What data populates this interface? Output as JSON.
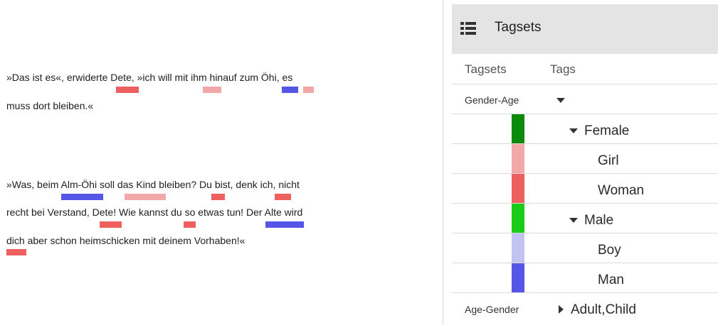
{
  "document": {
    "lines": [
      "»Das ist es«, erwiderte Dete, »ich will mit ihm hinauf zum Öhi, es",
      "muss dort bleiben.«",
      "»Was, beim Alm-Öhi soll das Kind bleiben? Du bist, denk ich, nicht",
      "recht bei Verstand, Dete! Wie kannst du so etwas tun! Der Alte wird",
      "dich aber schon heimschicken mit deinem Vorhaben!«"
    ]
  },
  "colors": {
    "female": "#0b8a0b",
    "girl": "#f2a8a8",
    "woman": "#ee6060",
    "male": "#18cc18",
    "boy": "#c3c3f3",
    "man": "#5555e6",
    "header_bg": "#e4e4e4"
  },
  "panel": {
    "title": "Tagsets",
    "icon": "list-icon",
    "columns": {
      "tagsets": "Tagsets",
      "tags": "Tags"
    },
    "tagsets": [
      {
        "name": "Gender-Age",
        "expanded": true,
        "tags": [
          {
            "label": "Female",
            "expandable": true
          },
          {
            "label": "Girl",
            "expandable": false
          },
          {
            "label": "Woman",
            "expandable": false
          },
          {
            "label": "Male",
            "expandable": true
          },
          {
            "label": "Boy",
            "expandable": false
          },
          {
            "label": "Man",
            "expandable": false
          }
        ]
      },
      {
        "name": "Age-Gender",
        "expanded": false,
        "tags_summary": "Adult,Child"
      }
    ]
  }
}
